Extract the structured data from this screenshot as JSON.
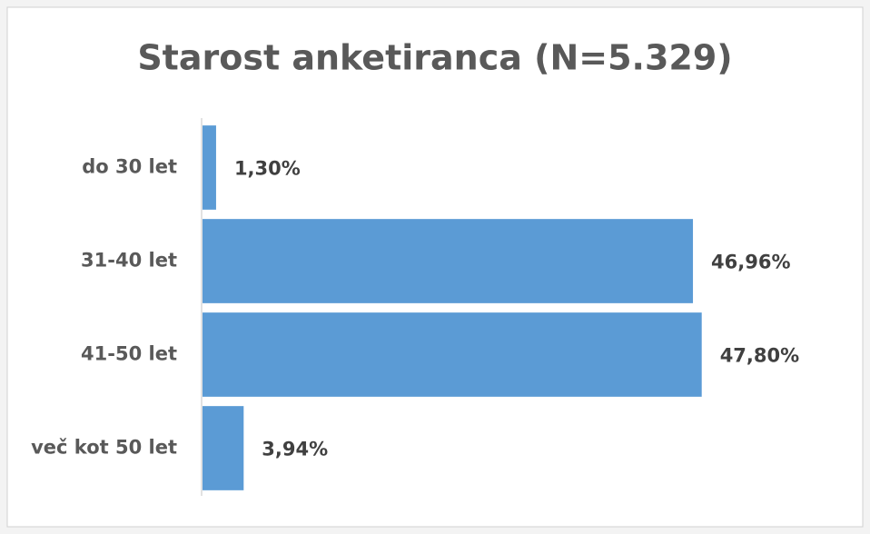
{
  "chart_data": {
    "type": "bar",
    "orientation": "horizontal",
    "title": "Starost anketiranca (N=5.329)",
    "categories": [
      "do 30 let",
      "31-40 let",
      "41-50 let",
      "več kot 50 let"
    ],
    "values": [
      1.3,
      46.96,
      47.8,
      3.94
    ],
    "value_labels": [
      "1,30%",
      "46,96%",
      "47,80%",
      "3,94%"
    ],
    "color": "#5b9bd5",
    "xlim": [
      0,
      60
    ]
  }
}
